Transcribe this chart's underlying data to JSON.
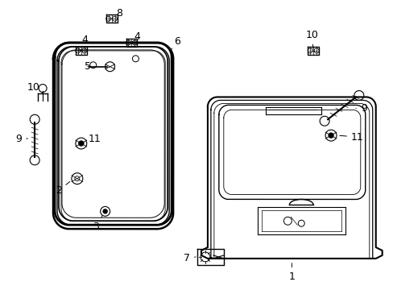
{
  "bg_color": "#ffffff",
  "fig_width": 4.89,
  "fig_height": 3.6,
  "dpi": 100,
  "line_color": "#000000",
  "label_fontsize": 9
}
